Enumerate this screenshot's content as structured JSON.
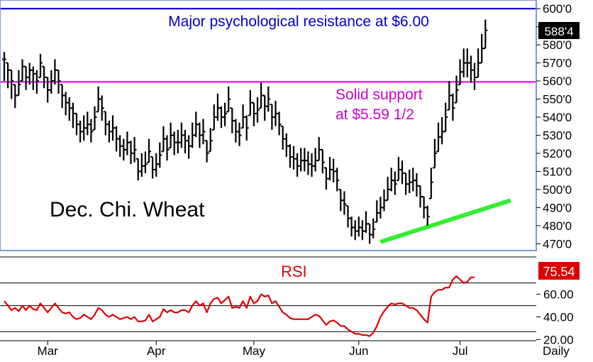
{
  "chart_data": [
    {
      "type": "ohlc",
      "title": "Dec. Chi. Wheat",
      "ylim": [
        467,
        604
      ],
      "y_ticks": [
        "470'0",
        "480'0",
        "490'0",
        "500'0",
        "510'0",
        "520'0",
        "530'0",
        "540'0",
        "550'0",
        "560'0",
        "570'0",
        "580'0",
        "590'0",
        "600'0"
      ],
      "y_tick_values": [
        470,
        480,
        490,
        500,
        510,
        520,
        530,
        540,
        550,
        560,
        570,
        580,
        590,
        600
      ],
      "x_months": [
        {
          "label": "Mar",
          "index": 12
        },
        {
          "label": "Apr",
          "index": 42
        },
        {
          "label": "May",
          "index": 69
        },
        {
          "label": "Jun",
          "index": 98
        },
        {
          "label": "Jul",
          "index": 126
        }
      ],
      "x_axis_label": "Daily",
      "last_price": "588'4",
      "last_value": 588.5,
      "closes": [
        572,
        566,
        560,
        552,
        558,
        568,
        562,
        566,
        564,
        560,
        570,
        562,
        555,
        560,
        566,
        560,
        552,
        548,
        545,
        542,
        536,
        532,
        534,
        536,
        532,
        540,
        550,
        545,
        536,
        532,
        534,
        528,
        524,
        522,
        526,
        520,
        522,
        510,
        513,
        514,
        521,
        511,
        514,
        519,
        528,
        522,
        530,
        526,
        526,
        530,
        527,
        524,
        530,
        536,
        530,
        532,
        520,
        527,
        540,
        545,
        540,
        542,
        550,
        538,
        532,
        530,
        540,
        534,
        548,
        542,
        544,
        552,
        546,
        550,
        540,
        542,
        536,
        528,
        524,
        518,
        517,
        513,
        516,
        516,
        514,
        513,
        516,
        522,
        515,
        506,
        511,
        510,
        505,
        494,
        492,
        484,
        479,
        477,
        479,
        477,
        481,
        475,
        478,
        487,
        490,
        494,
        500,
        505,
        503,
        511,
        509,
        503,
        504,
        505,
        502,
        496,
        490,
        485,
        504,
        520,
        529,
        532,
        540,
        552,
        545,
        555,
        565,
        570,
        570,
        566,
        562,
        570,
        578,
        588
      ],
      "ranges": [
        [
          560,
          576
        ],
        [
          556,
          570
        ],
        [
          550,
          566
        ],
        [
          545,
          558
        ],
        [
          552,
          566
        ],
        [
          560,
          572
        ],
        [
          555,
          568
        ],
        [
          558,
          570
        ],
        [
          555,
          568
        ],
        [
          553,
          566
        ],
        [
          562,
          575
        ],
        [
          556,
          568
        ],
        [
          548,
          562
        ],
        [
          553,
          566
        ],
        [
          558,
          572
        ],
        [
          553,
          566
        ],
        [
          545,
          558
        ],
        [
          541,
          554
        ],
        [
          538,
          551
        ],
        [
          534,
          548
        ],
        [
          530,
          542
        ],
        [
          526,
          538
        ],
        [
          527,
          541
        ],
        [
          530,
          543
        ],
        [
          526,
          539
        ],
        [
          533,
          546
        ],
        [
          543,
          557
        ],
        [
          538,
          552
        ],
        [
          530,
          543
        ],
        [
          526,
          538
        ],
        [
          527,
          541
        ],
        [
          521,
          535
        ],
        [
          518,
          530
        ],
        [
          516,
          528
        ],
        [
          519,
          532
        ],
        [
          514,
          527
        ],
        [
          515,
          529
        ],
        [
          505,
          517
        ],
        [
          507,
          520
        ],
        [
          509,
          521
        ],
        [
          515,
          528
        ],
        [
          506,
          518
        ],
        [
          507,
          520
        ],
        [
          512,
          526
        ],
        [
          521,
          535
        ],
        [
          516,
          530
        ],
        [
          523,
          537
        ],
        [
          519,
          532
        ],
        [
          520,
          533
        ],
        [
          523,
          537
        ],
        [
          520,
          533
        ],
        [
          517,
          530
        ],
        [
          523,
          537
        ],
        [
          529,
          543
        ],
        [
          523,
          537
        ],
        [
          525,
          539
        ],
        [
          515,
          527
        ],
        [
          521,
          534
        ],
        [
          533,
          547
        ],
        [
          538,
          553
        ],
        [
          534,
          546
        ],
        [
          535,
          548
        ],
        [
          543,
          557
        ],
        [
          531,
          545
        ],
        [
          526,
          539
        ],
        [
          524,
          537
        ],
        [
          534,
          547
        ],
        [
          527,
          541
        ],
        [
          541,
          555
        ],
        [
          535,
          548
        ],
        [
          537,
          551
        ],
        [
          545,
          559
        ],
        [
          538,
          552
        ],
        [
          543,
          557
        ],
        [
          533,
          547
        ],
        [
          535,
          549
        ],
        [
          530,
          543
        ],
        [
          522,
          535
        ],
        [
          518,
          531
        ],
        [
          512,
          525
        ],
        [
          511,
          524
        ],
        [
          507,
          520
        ],
        [
          510,
          523
        ],
        [
          510,
          523
        ],
        [
          508,
          521
        ],
        [
          507,
          520
        ],
        [
          510,
          523
        ],
        [
          516,
          529
        ],
        [
          509,
          522
        ],
        [
          500,
          512
        ],
        [
          505,
          518
        ],
        [
          504,
          517
        ],
        [
          499,
          512
        ],
        [
          488,
          500
        ],
        [
          486,
          499
        ],
        [
          479,
          491
        ],
        [
          474,
          485
        ],
        [
          472,
          483
        ],
        [
          474,
          485
        ],
        [
          472,
          483
        ],
        [
          476,
          488
        ],
        [
          470,
          481
        ],
        [
          473,
          484
        ],
        [
          482,
          494
        ],
        [
          484,
          496
        ],
        [
          488,
          500
        ],
        [
          494,
          507
        ],
        [
          499,
          512
        ],
        [
          497,
          510
        ],
        [
          505,
          518
        ],
        [
          503,
          516
        ],
        [
          497,
          509
        ],
        [
          498,
          511
        ],
        [
          499,
          512
        ],
        [
          496,
          509
        ],
        [
          490,
          502
        ],
        [
          484,
          496
        ],
        [
          480,
          491
        ],
        [
          495,
          512
        ],
        [
          512,
          528
        ],
        [
          521,
          537
        ],
        [
          525,
          540
        ],
        [
          532,
          548
        ],
        [
          544,
          560
        ],
        [
          538,
          553
        ],
        [
          548,
          563
        ],
        [
          558,
          572
        ],
        [
          562,
          578
        ],
        [
          562,
          578
        ],
        [
          559,
          574
        ],
        [
          555,
          570
        ],
        [
          562,
          578
        ],
        [
          570,
          586
        ],
        [
          578,
          594
        ]
      ],
      "annotations": [
        {
          "text": "Major psychological resistance at $6.00",
          "y": 600
        },
        {
          "text": "Solid support",
          "y": 559.5
        },
        {
          "text": "at $5.59 1/2",
          "y": 559.5
        }
      ],
      "horizontal_lines": [
        {
          "y": 600,
          "color": "#0000cc"
        },
        {
          "y": 559.5,
          "color": "#ff00ff"
        }
      ],
      "trendline": {
        "from": {
          "index": 104,
          "value": 471
        },
        "to": {
          "index": 140,
          "value": 494
        },
        "color": "#33ee33"
      }
    },
    {
      "type": "line",
      "title": "RSI",
      "ylim": [
        19,
        93
      ],
      "y_ticks": [
        "20.00",
        "40.00",
        "60.00"
      ],
      "y_tick_values": [
        20,
        40,
        60
      ],
      "reference_lines": [
        27,
        50,
        70
      ],
      "last_value": "75.54",
      "series": [
        {
          "color": "#dd0000",
          "values": [
            54,
            50,
            46,
            48,
            45,
            50,
            46,
            50,
            47,
            46,
            52,
            48,
            44,
            48,
            52,
            48,
            44,
            43,
            44,
            40,
            38,
            39,
            42,
            40,
            38,
            42,
            48,
            46,
            42,
            40,
            42,
            40,
            38,
            39,
            40,
            38,
            40,
            36,
            36,
            37,
            42,
            36,
            38,
            40,
            47,
            44,
            46,
            44,
            44,
            46,
            46,
            44,
            50,
            54,
            50,
            52,
            44,
            52,
            56,
            57,
            52,
            55,
            58,
            48,
            49,
            48,
            54,
            48,
            58,
            52,
            54,
            60,
            58,
            59,
            52,
            54,
            49,
            44,
            42,
            39,
            38,
            38,
            38,
            38,
            38,
            40,
            42,
            41,
            37,
            33,
            36,
            37,
            35,
            32,
            32,
            29,
            27,
            25,
            25,
            24,
            24,
            23,
            26,
            32,
            40,
            45,
            49,
            52,
            51,
            52,
            52,
            50,
            48,
            48,
            46,
            42,
            38,
            35,
            58,
            62,
            64,
            64,
            66,
            66,
            73,
            76,
            73,
            70,
            71,
            75,
            75
          ]
        }
      ]
    }
  ]
}
